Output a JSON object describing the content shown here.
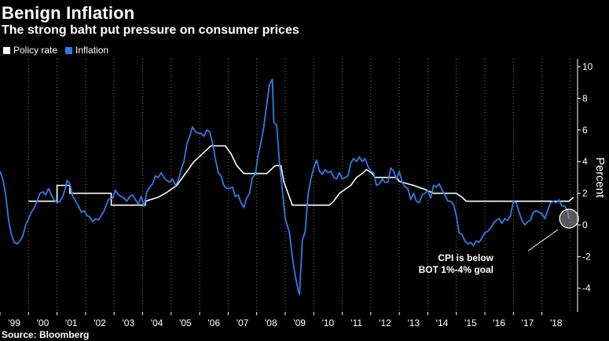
{
  "header": {
    "title": "Benign Inflation",
    "subtitle": "The strong baht put pressure on consumer prices"
  },
  "source": "Source: Bloomberg",
  "colors": {
    "background": "#000000",
    "policy_rate": "#ffffff",
    "inflation": "#2f7ce6",
    "grid": "#777777"
  },
  "chart_data": {
    "type": "line",
    "title": "Benign Inflation",
    "subtitle": "The strong baht put pressure on consumer prices",
    "ylabel": "Percent",
    "xlabel": "",
    "ylim": [
      -5.5,
      10.5
    ],
    "xlim": [
      1999.0,
      2019.25
    ],
    "x_tick_labels": [
      "'99",
      "'00",
      "'01",
      "'02",
      "'03",
      "'04",
      "'05",
      "'06",
      "'07",
      "'08",
      "'09",
      "'10",
      "'11",
      "'12",
      "'13",
      "'14",
      "'15",
      "'16",
      "'17",
      "'18"
    ],
    "y_ticks": [
      -4,
      -2,
      0,
      2,
      4,
      6,
      8,
      10
    ],
    "grid": "vertical dotted",
    "legend_position": "top-left",
    "annotation": {
      "text_line1": "CPI is below",
      "text_line2": "BOT 1%-4% goal",
      "target": [
        2018.95,
        0.4
      ]
    },
    "series": [
      {
        "name": "Policy rate",
        "color": "#ffffff",
        "step": true,
        "points": [
          [
            2000.0,
            1.5
          ],
          [
            2001.0,
            1.5
          ],
          [
            2001.0,
            2.5
          ],
          [
            2001.45,
            2.5
          ],
          [
            2001.45,
            2.0
          ],
          [
            2002.9,
            2.0
          ],
          [
            2002.9,
            1.25
          ],
          [
            2004.1,
            1.25
          ],
          [
            2004.1,
            1.5
          ],
          [
            2004.55,
            1.75
          ],
          [
            2004.8,
            2.0
          ],
          [
            2005.0,
            2.25
          ],
          [
            2005.2,
            2.5
          ],
          [
            2005.4,
            3.0
          ],
          [
            2005.6,
            3.5
          ],
          [
            2005.8,
            4.0
          ],
          [
            2005.95,
            4.25
          ],
          [
            2006.1,
            4.5
          ],
          [
            2006.25,
            4.75
          ],
          [
            2006.4,
            5.0
          ],
          [
            2006.9,
            5.0
          ],
          [
            2007.1,
            4.5
          ],
          [
            2007.3,
            3.75
          ],
          [
            2007.55,
            3.25
          ],
          [
            2008.35,
            3.25
          ],
          [
            2008.5,
            3.5
          ],
          [
            2008.65,
            3.75
          ],
          [
            2008.85,
            3.75
          ],
          [
            2008.95,
            2.75
          ],
          [
            2009.1,
            2.0
          ],
          [
            2009.25,
            1.25
          ],
          [
            2010.55,
            1.25
          ],
          [
            2010.7,
            1.5
          ],
          [
            2010.9,
            2.0
          ],
          [
            2011.1,
            2.25
          ],
          [
            2011.3,
            2.5
          ],
          [
            2011.5,
            3.0
          ],
          [
            2011.7,
            3.25
          ],
          [
            2011.85,
            3.5
          ],
          [
            2012.05,
            3.25
          ],
          [
            2012.15,
            3.0
          ],
          [
            2012.9,
            3.0
          ],
          [
            2013.0,
            2.75
          ],
          [
            2013.5,
            2.5
          ],
          [
            2013.9,
            2.25
          ],
          [
            2014.2,
            2.0
          ],
          [
            2015.0,
            2.0
          ],
          [
            2015.2,
            1.75
          ],
          [
            2015.35,
            1.5
          ],
          [
            2018.95,
            1.5
          ],
          [
            2019.1,
            1.75
          ]
        ]
      },
      {
        "name": "Inflation",
        "color": "#2f7ce6",
        "step": false,
        "points": [
          [
            1999.0,
            3.4
          ],
          [
            1999.1,
            2.9
          ],
          [
            1999.2,
            1.9
          ],
          [
            1999.3,
            0.3
          ],
          [
            1999.4,
            -0.6
          ],
          [
            1999.5,
            -1.1
          ],
          [
            1999.6,
            -1.2
          ],
          [
            1999.7,
            -1.0
          ],
          [
            1999.8,
            -0.7
          ],
          [
            1999.9,
            0.0
          ],
          [
            2000.0,
            0.4
          ],
          [
            2000.1,
            0.8
          ],
          [
            2000.2,
            1.1
          ],
          [
            2000.3,
            1.5
          ],
          [
            2000.4,
            2.0
          ],
          [
            2000.5,
            2.1
          ],
          [
            2000.6,
            1.9
          ],
          [
            2000.7,
            2.3
          ],
          [
            2000.8,
            1.9
          ],
          [
            2000.9,
            1.6
          ],
          [
            2001.0,
            1.4
          ],
          [
            2001.1,
            1.5
          ],
          [
            2001.2,
            1.8
          ],
          [
            2001.3,
            2.4
          ],
          [
            2001.35,
            2.8
          ],
          [
            2001.45,
            2.6
          ],
          [
            2001.55,
            1.8
          ],
          [
            2001.65,
            1.5
          ],
          [
            2001.75,
            1.2
          ],
          [
            2001.85,
            0.8
          ],
          [
            2001.95,
            0.9
          ],
          [
            2002.05,
            0.6
          ],
          [
            2002.15,
            0.5
          ],
          [
            2002.25,
            0.2
          ],
          [
            2002.35,
            0.4
          ],
          [
            2002.45,
            0.3
          ],
          [
            2002.55,
            0.6
          ],
          [
            2002.65,
            0.9
          ],
          [
            2002.8,
            1.6
          ],
          [
            2002.95,
            1.7
          ],
          [
            2003.05,
            2.2
          ],
          [
            2003.15,
            1.9
          ],
          [
            2003.25,
            1.8
          ],
          [
            2003.35,
            1.7
          ],
          [
            2003.45,
            1.5
          ],
          [
            2003.55,
            1.8
          ],
          [
            2003.65,
            1.9
          ],
          [
            2003.75,
            1.6
          ],
          [
            2003.85,
            1.3
          ],
          [
            2003.95,
            1.8
          ],
          [
            2004.05,
            1.2
          ],
          [
            2004.15,
            2.1
          ],
          [
            2004.25,
            2.4
          ],
          [
            2004.35,
            2.6
          ],
          [
            2004.45,
            3.1
          ],
          [
            2004.55,
            3.0
          ],
          [
            2004.65,
            3.3
          ],
          [
            2004.75,
            3.0
          ],
          [
            2004.85,
            2.8
          ],
          [
            2004.95,
            2.7
          ],
          [
            2005.05,
            2.9
          ],
          [
            2005.15,
            2.5
          ],
          [
            2005.25,
            2.8
          ],
          [
            2005.35,
            3.5
          ],
          [
            2005.45,
            4.0
          ],
          [
            2005.55,
            5.1
          ],
          [
            2005.65,
            5.6
          ],
          [
            2005.75,
            6.2
          ],
          [
            2005.85,
            5.9
          ],
          [
            2005.95,
            5.8
          ],
          [
            2006.05,
            5.8
          ],
          [
            2006.15,
            5.6
          ],
          [
            2006.25,
            6.0
          ],
          [
            2006.35,
            5.9
          ],
          [
            2006.45,
            5.2
          ],
          [
            2006.55,
            4.2
          ],
          [
            2006.65,
            3.3
          ],
          [
            2006.75,
            3.1
          ],
          [
            2006.85,
            2.5
          ],
          [
            2006.95,
            2.3
          ],
          [
            2007.05,
            2.3
          ],
          [
            2007.15,
            2.4
          ],
          [
            2007.25,
            1.8
          ],
          [
            2007.35,
            1.9
          ],
          [
            2007.45,
            1.4
          ],
          [
            2007.55,
            1.1
          ],
          [
            2007.65,
            1.7
          ],
          [
            2007.75,
            2.0
          ],
          [
            2007.85,
            3.0
          ],
          [
            2007.95,
            3.2
          ],
          [
            2008.05,
            4.4
          ],
          [
            2008.15,
            5.2
          ],
          [
            2008.25,
            6.2
          ],
          [
            2008.35,
            7.6
          ],
          [
            2008.45,
            8.9
          ],
          [
            2008.55,
            9.2
          ],
          [
            2008.6,
            6.5
          ],
          [
            2008.7,
            6.3
          ],
          [
            2008.8,
            3.9
          ],
          [
            2008.9,
            2.2
          ],
          [
            2009.0,
            0.4
          ],
          [
            2009.1,
            -0.2
          ],
          [
            2009.15,
            -0.5
          ],
          [
            2009.25,
            -2.0
          ],
          [
            2009.35,
            -3.2
          ],
          [
            2009.45,
            -4.1
          ],
          [
            2009.5,
            -4.4
          ],
          [
            2009.6,
            -1.0
          ],
          [
            2009.7,
            -0.4
          ],
          [
            2009.8,
            1.9
          ],
          [
            2009.9,
            2.9
          ],
          [
            2010.0,
            3.6
          ],
          [
            2010.1,
            4.1
          ],
          [
            2010.2,
            3.4
          ],
          [
            2010.3,
            3.2
          ],
          [
            2010.4,
            3.5
          ],
          [
            2010.5,
            3.3
          ],
          [
            2010.6,
            3.4
          ],
          [
            2010.7,
            3.0
          ],
          [
            2010.8,
            2.9
          ],
          [
            2010.9,
            3.3
          ],
          [
            2011.0,
            2.9
          ],
          [
            2011.1,
            3.0
          ],
          [
            2011.2,
            3.1
          ],
          [
            2011.3,
            3.9
          ],
          [
            2011.4,
            4.2
          ],
          [
            2011.5,
            4.0
          ],
          [
            2011.6,
            4.3
          ],
          [
            2011.7,
            4.0
          ],
          [
            2011.8,
            4.2
          ],
          [
            2011.9,
            3.7
          ],
          [
            2012.0,
            3.4
          ],
          [
            2012.1,
            3.3
          ],
          [
            2012.2,
            2.5
          ],
          [
            2012.3,
            2.6
          ],
          [
            2012.4,
            2.9
          ],
          [
            2012.5,
            2.7
          ],
          [
            2012.6,
            2.7
          ],
          [
            2012.7,
            3.6
          ],
          [
            2012.8,
            3.4
          ],
          [
            2012.9,
            2.9
          ],
          [
            2013.0,
            3.4
          ],
          [
            2013.1,
            2.7
          ],
          [
            2013.2,
            2.4
          ],
          [
            2013.3,
            2.3
          ],
          [
            2013.4,
            1.6
          ],
          [
            2013.5,
            2.0
          ],
          [
            2013.6,
            1.5
          ],
          [
            2013.7,
            1.4
          ],
          [
            2013.8,
            1.9
          ],
          [
            2013.9,
            2.0
          ],
          [
            2014.0,
            2.2
          ],
          [
            2014.1,
            1.7
          ],
          [
            2014.2,
            2.5
          ],
          [
            2014.3,
            2.4
          ],
          [
            2014.4,
            2.6
          ],
          [
            2014.5,
            2.2
          ],
          [
            2014.6,
            1.9
          ],
          [
            2014.7,
            1.5
          ],
          [
            2014.8,
            1.5
          ],
          [
            2014.9,
            1.3
          ],
          [
            2015.0,
            0.6
          ],
          [
            2015.1,
            -0.5
          ],
          [
            2015.2,
            -0.6
          ],
          [
            2015.3,
            -1.0
          ],
          [
            2015.4,
            -1.2
          ],
          [
            2015.5,
            -1.1
          ],
          [
            2015.6,
            -1.3
          ],
          [
            2015.7,
            -1.0
          ],
          [
            2015.8,
            -1.1
          ],
          [
            2015.9,
            -0.8
          ],
          [
            2016.0,
            -0.5
          ],
          [
            2016.1,
            -0.4
          ],
          [
            2016.2,
            -0.2
          ],
          [
            2016.3,
            0.1
          ],
          [
            2016.4,
            0.3
          ],
          [
            2016.5,
            0.4
          ],
          [
            2016.6,
            0.1
          ],
          [
            2016.7,
            0.4
          ],
          [
            2016.8,
            0.3
          ],
          [
            2016.9,
            0.6
          ],
          [
            2017.0,
            1.5
          ],
          [
            2017.1,
            1.4
          ],
          [
            2017.2,
            0.8
          ],
          [
            2017.3,
            0.3
          ],
          [
            2017.4,
            0.0
          ],
          [
            2017.5,
            0.2
          ],
          [
            2017.6,
            0.3
          ],
          [
            2017.7,
            0.8
          ],
          [
            2017.8,
            0.9
          ],
          [
            2017.9,
            0.8
          ],
          [
            2018.0,
            0.7
          ],
          [
            2018.1,
            0.4
          ],
          [
            2018.2,
            0.9
          ],
          [
            2018.3,
            1.4
          ],
          [
            2018.4,
            1.5
          ],
          [
            2018.5,
            1.4
          ],
          [
            2018.6,
            1.6
          ],
          [
            2018.7,
            1.2
          ],
          [
            2018.8,
            1.2
          ],
          [
            2018.9,
            0.9
          ],
          [
            2018.95,
            0.4
          ]
        ]
      }
    ]
  }
}
